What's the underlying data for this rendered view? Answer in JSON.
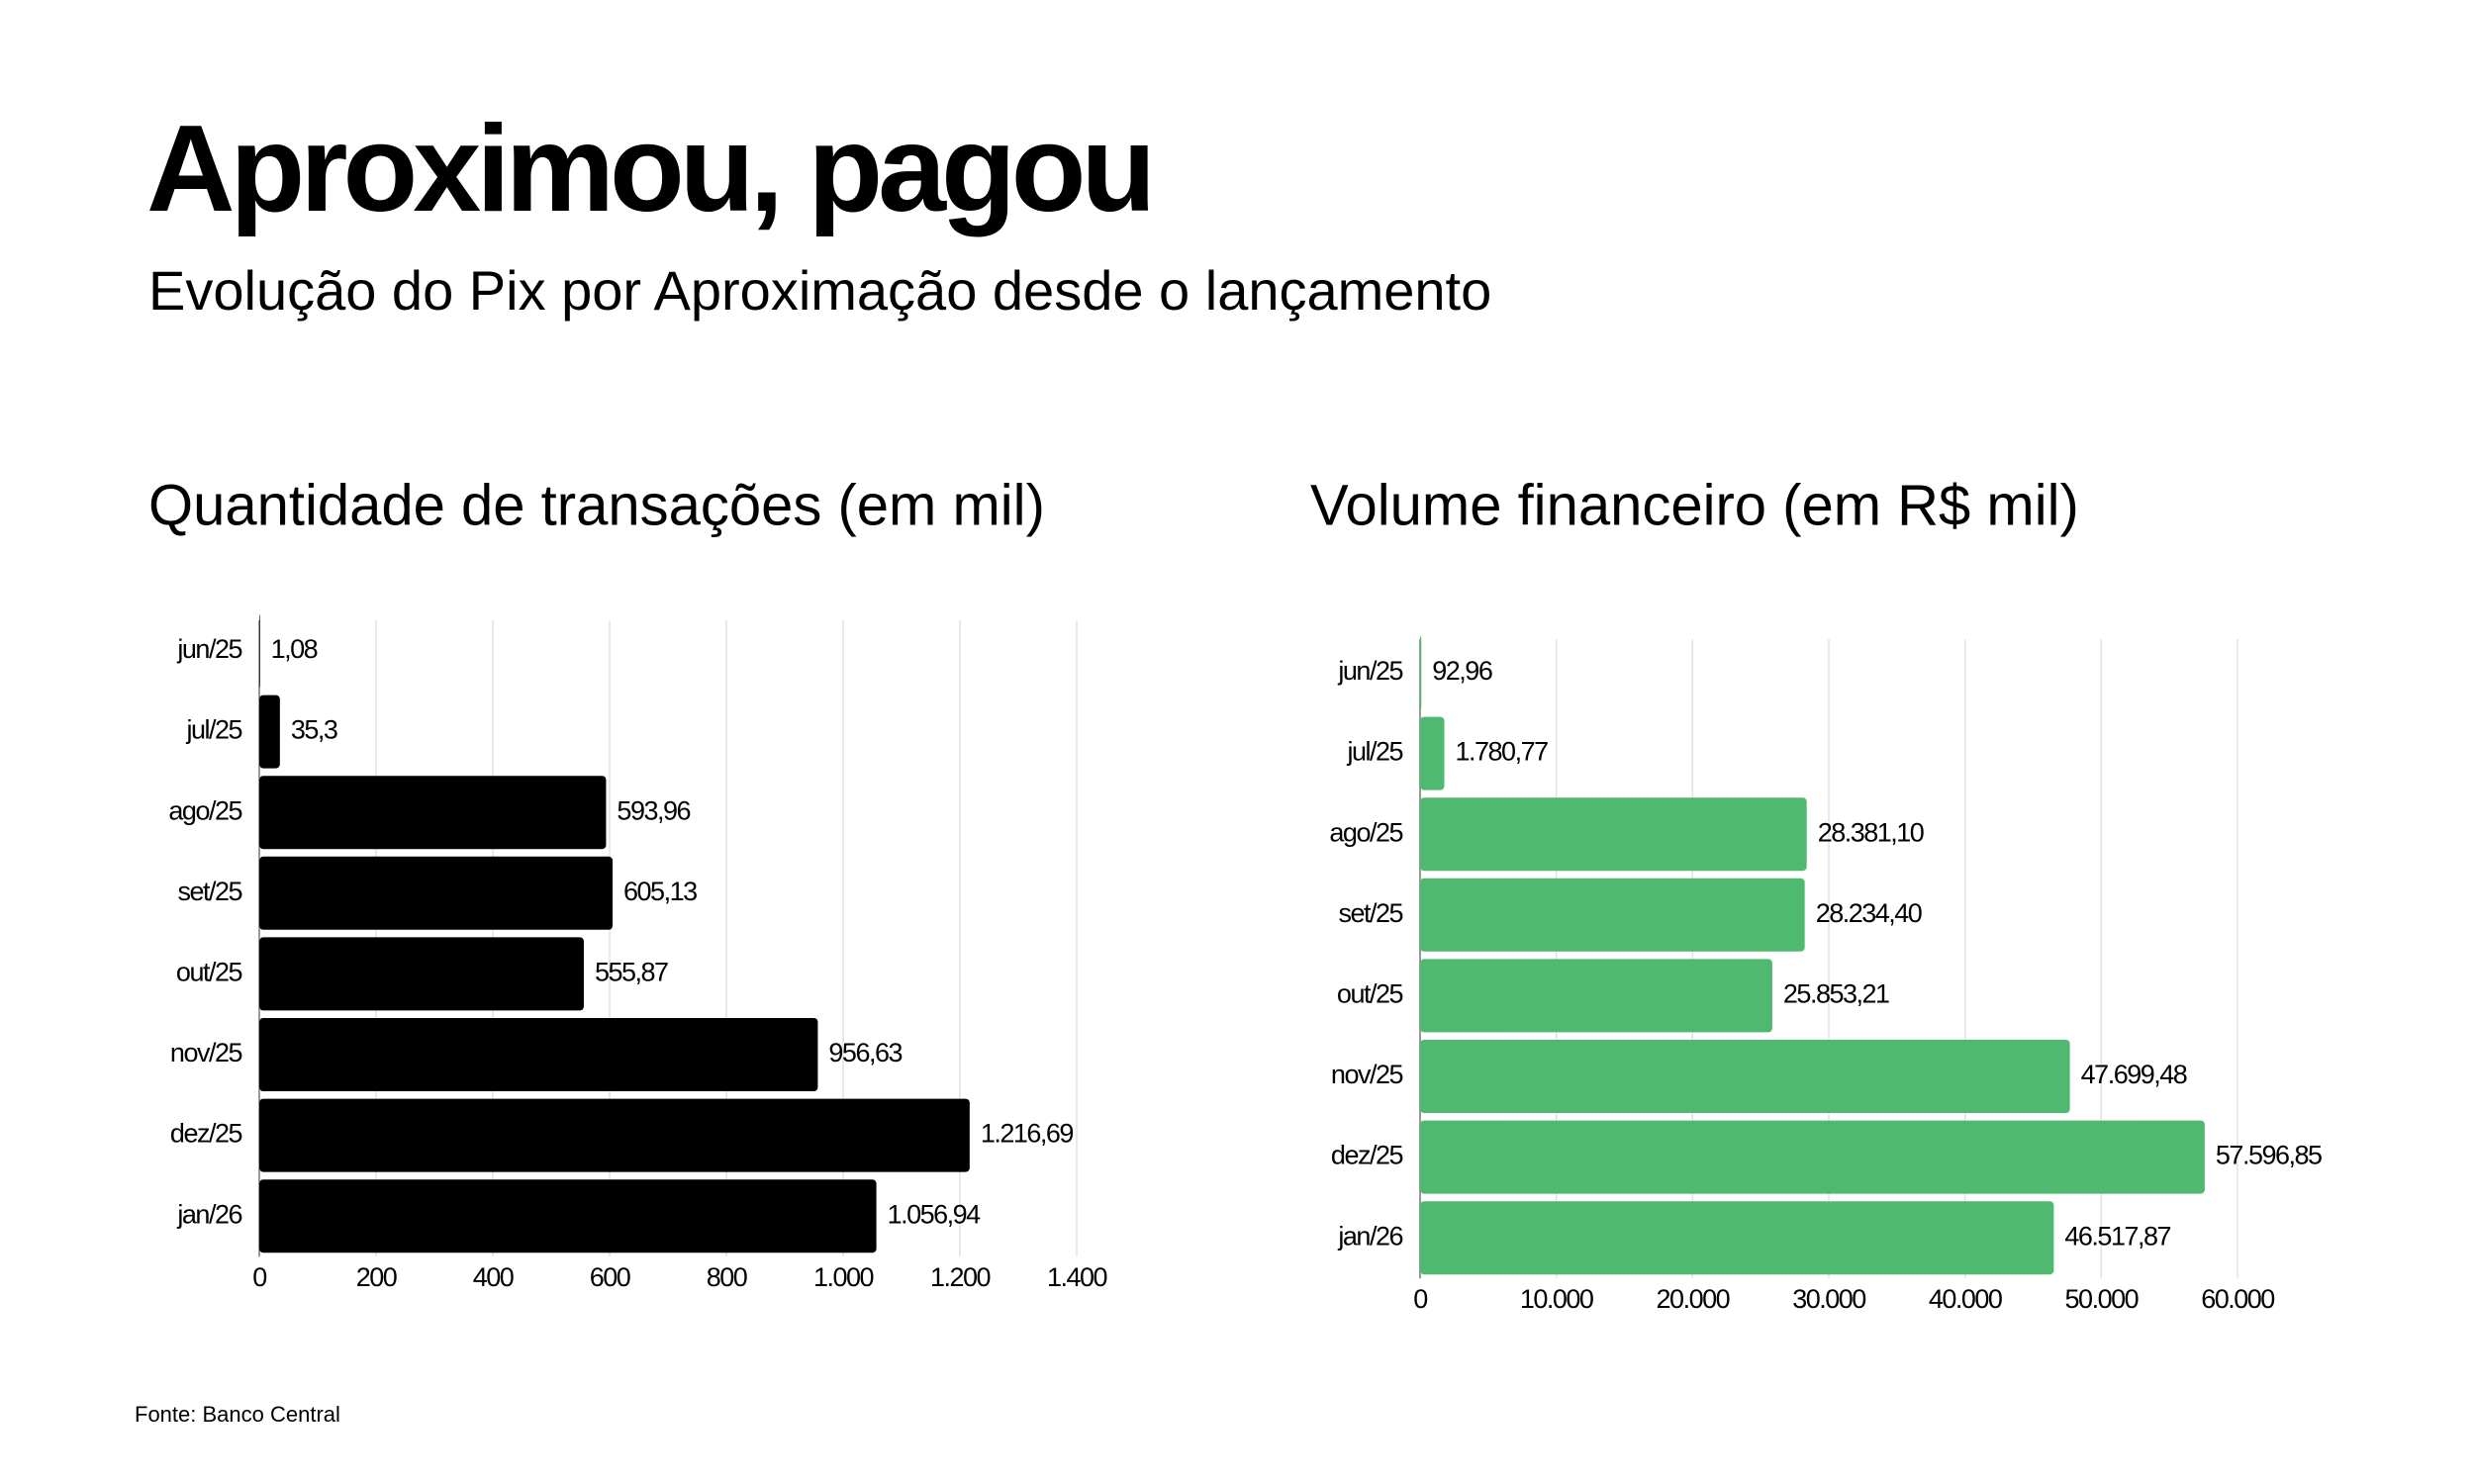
{
  "title": "Aproximou, pagou",
  "subtitle": "Evolução do Pix por Aproximação desde o lançamento",
  "source": "Fonte: Banco Central",
  "chart_data": [
    {
      "type": "bar",
      "horizontal": true,
      "title": "Quantidade de transações (em mil)",
      "categories": [
        "jun/25",
        "jul/25",
        "ago/25",
        "set/25",
        "out/25",
        "nov/25",
        "dez/25",
        "jan/26"
      ],
      "values": [
        1.08,
        35.3,
        593.96,
        605.13,
        555.87,
        956.63,
        1216.69,
        1056.94
      ],
      "value_labels": [
        "1,08",
        "35,3",
        "593,96",
        "605,13",
        "555,87",
        "956,63",
        "1.216,69",
        "1.056,94"
      ],
      "color": "#000000",
      "xlim": [
        0,
        1400
      ],
      "xticks": [
        0,
        200,
        400,
        600,
        800,
        {
          "value": 1000,
          "label": "1.000"
        },
        {
          "value": 1200,
          "label": "1.200"
        },
        {
          "value": 1400,
          "label": "1.400"
        }
      ],
      "grid": true
    },
    {
      "type": "bar",
      "horizontal": true,
      "title": "Volume financeiro (em R$ mil)",
      "categories": [
        "jun/25",
        "jul/25",
        "ago/25",
        "set/25",
        "out/25",
        "nov/25",
        "dez/25",
        "jan/26"
      ],
      "values": [
        92.96,
        1780.77,
        28381.1,
        28234.4,
        25853.21,
        47699.48,
        57596.85,
        46517.87
      ],
      "value_labels": [
        "92,96",
        "1.780,77",
        "28.381,10",
        "28.234,40",
        "25.853,21",
        "47.699,48",
        "57.596,85",
        "46.517,87"
      ],
      "color": "#4fba6f",
      "xlim": [
        0,
        60000
      ],
      "xticks": [
        0,
        {
          "value": 10000,
          "label": "10.000"
        },
        {
          "value": 20000,
          "label": "20.000"
        },
        {
          "value": 30000,
          "label": "30.000"
        },
        {
          "value": 40000,
          "label": "40.000"
        },
        {
          "value": 50000,
          "label": "50.000"
        },
        {
          "value": 60000,
          "label": "60.000"
        }
      ],
      "grid": true
    }
  ]
}
